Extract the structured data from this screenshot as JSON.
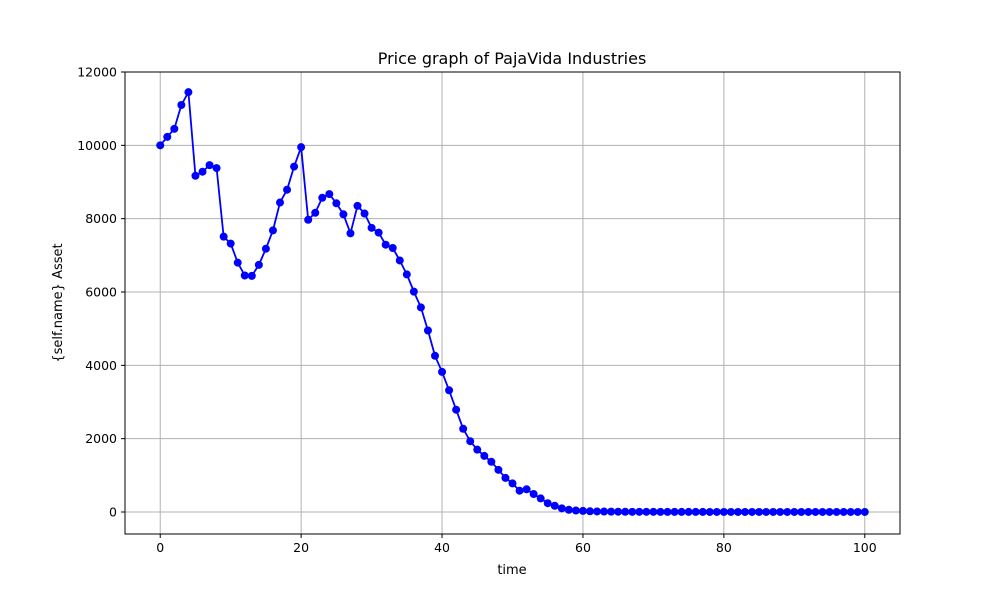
{
  "chart_data": {
    "type": "line",
    "title": "Price graph of PajaVida Industries",
    "xlabel": "time",
    "ylabel": "{self.name} Asset",
    "xlim": [
      -5,
      105
    ],
    "ylim": [
      -600,
      12000
    ],
    "xticks": [
      0,
      20,
      40,
      60,
      80,
      100
    ],
    "yticks": [
      0,
      2000,
      4000,
      6000,
      8000,
      10000,
      12000
    ],
    "grid": true,
    "legend": "none",
    "colors": {
      "line": "#0000ff",
      "marker": "#0000ff",
      "grid": "#b0b0b0",
      "axes": "#000000"
    },
    "series": [
      {
        "name": "price",
        "x": [
          0,
          1,
          2,
          3,
          4,
          5,
          6,
          7,
          8,
          9,
          10,
          11,
          12,
          13,
          14,
          15,
          16,
          17,
          18,
          19,
          20,
          21,
          22,
          23,
          24,
          25,
          26,
          27,
          28,
          29,
          30,
          31,
          32,
          33,
          34,
          35,
          36,
          37,
          38,
          39,
          40,
          41,
          42,
          43,
          44,
          45,
          46,
          47,
          48,
          49,
          50,
          51,
          52,
          53,
          54,
          55,
          56,
          57,
          58,
          59,
          60,
          61,
          62,
          63,
          64,
          65,
          66,
          67,
          68,
          69,
          70,
          71,
          72,
          73,
          74,
          75,
          76,
          77,
          78,
          79,
          80,
          81,
          82,
          83,
          84,
          85,
          86,
          87,
          88,
          89,
          90,
          91,
          92,
          93,
          94,
          95,
          96,
          97,
          98,
          99,
          100
        ],
        "values": [
          10000,
          10230,
          10450,
          11100,
          11450,
          9170,
          9280,
          9460,
          9380,
          7510,
          7320,
          6800,
          6450,
          6440,
          6740,
          7180,
          7680,
          8440,
          8790,
          9420,
          9950,
          7970,
          8160,
          8570,
          8670,
          8420,
          8120,
          7600,
          8350,
          8140,
          7750,
          7620,
          7290,
          7200,
          6860,
          6480,
          6010,
          5580,
          4950,
          4260,
          3820,
          3320,
          2790,
          2270,
          1930,
          1700,
          1530,
          1370,
          1150,
          930,
          780,
          580,
          620,
          490,
          370,
          240,
          170,
          100,
          60,
          40,
          30,
          20,
          15,
          12,
          10,
          8,
          6,
          5,
          5,
          4,
          4,
          3,
          3,
          3,
          2,
          2,
          2,
          2,
          1,
          1,
          1,
          1,
          1,
          1,
          1,
          1,
          1,
          1,
          1,
          1,
          1,
          1,
          1,
          1,
          1,
          1,
          1,
          1,
          1,
          1,
          1
        ]
      }
    ]
  }
}
